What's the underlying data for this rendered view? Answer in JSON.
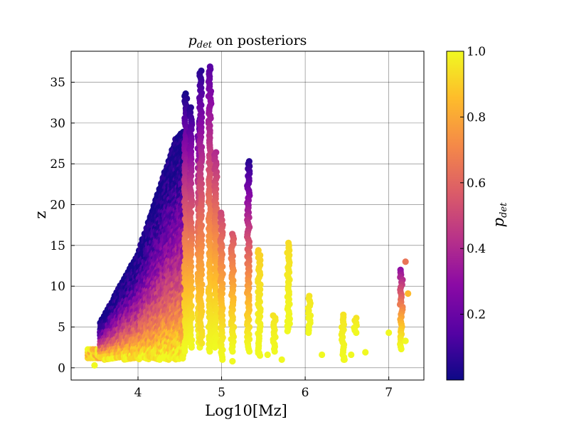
{
  "chart_data": {
    "type": "scatter",
    "title": "p_det on posteriors",
    "title_symbol": "p",
    "title_subscript": "det",
    "title_rest": " on posteriors",
    "xlabel": "Log10[Mz]",
    "ylabel": "z",
    "xlim": [
      3.2,
      7.42
    ],
    "ylim": [
      -1.5,
      38.8
    ],
    "xticks": [
      4,
      5,
      6,
      7
    ],
    "yticks": [
      0,
      5,
      10,
      15,
      20,
      25,
      30,
      35
    ],
    "grid": true,
    "colormap": "plasma",
    "colors": {
      "cmap_stops": [
        "#0d0887",
        "#5302a3",
        "#8b0aa5",
        "#b83289",
        "#db5c68",
        "#f48849",
        "#febd2a",
        "#f0f921"
      ],
      "grid": "#000000"
    },
    "colorbar": {
      "label_symbol": "p",
      "label_subscript": "det",
      "range": [
        0.0,
        1.0
      ],
      "ticks": [
        0.2,
        0.4,
        0.6,
        0.8,
        1.0
      ],
      "tick_labels": [
        "0.2",
        "0.4",
        "0.6",
        "0.8",
        "1.0"
      ]
    },
    "groups": [
      {
        "type": "band",
        "x_min": 3.4,
        "x_max": 3.55,
        "z_min": 1.2,
        "z_max": 2.5,
        "p_low": 0.75,
        "p_high": 1.0
      },
      {
        "type": "edge_band",
        "x_min": 3.55,
        "x_max": 4.55,
        "z_min": 1.0,
        "z_top_at": [
          [
            3.55,
            5.5
          ],
          [
            4.0,
            14.0
          ],
          [
            4.45,
            28.0
          ],
          [
            4.55,
            29.0
          ]
        ],
        "p_low": 0.02,
        "p_high": 1.0
      },
      {
        "type": "column",
        "x": 4.57,
        "z_min": 2.0,
        "z_max": 33.6,
        "p_low": 0.02,
        "p_high": 1.0
      },
      {
        "type": "column",
        "x": 4.63,
        "z_min": 2.5,
        "z_max": 31.9,
        "p_low": 0.05,
        "p_high": 1.0
      },
      {
        "type": "column",
        "x": 4.73,
        "z_min": 2.5,
        "z_max": 30.5,
        "p_low": 0.12,
        "p_high": 1.0
      },
      {
        "type": "column",
        "x": 4.75,
        "z_min": 3.0,
        "z_max": 36.4,
        "p_low": 0.05,
        "p_high": 0.95
      },
      {
        "type": "column",
        "x": 4.86,
        "z_min": 2.0,
        "z_max": 36.9,
        "p_low": 0.15,
        "p_high": 1.0
      },
      {
        "type": "column",
        "x": 4.93,
        "z_min": 2.5,
        "z_max": 26.4,
        "p_low": 0.4,
        "p_high": 1.0
      },
      {
        "type": "column",
        "x": 5.0,
        "z_min": 1.0,
        "z_max": 19.0,
        "p_low": 0.5,
        "p_high": 1.0
      },
      {
        "type": "column",
        "x": 5.13,
        "z_min": 2.0,
        "z_max": 16.4,
        "p_low": 0.55,
        "p_high": 1.0
      },
      {
        "type": "column",
        "x": 5.32,
        "z_min": 2.0,
        "z_max": 25.3,
        "p_low": 0.05,
        "p_high": 1.0
      },
      {
        "type": "column",
        "x": 5.45,
        "z_min": 1.5,
        "z_max": 14.4,
        "p_low": 0.9,
        "p_high": 1.0
      },
      {
        "type": "column",
        "x": 5.63,
        "z_min": 2.0,
        "z_max": 6.4,
        "p_low": 0.95,
        "p_high": 1.0
      },
      {
        "type": "column",
        "x": 5.8,
        "z_min": 4.5,
        "z_max": 15.3,
        "p_low": 0.93,
        "p_high": 1.0
      },
      {
        "type": "column",
        "x": 6.05,
        "z_min": 4.3,
        "z_max": 8.8,
        "p_low": 0.95,
        "p_high": 1.0
      },
      {
        "type": "column",
        "x": 6.45,
        "z_min": 1.0,
        "z_max": 6.5,
        "p_low": 0.95,
        "p_high": 1.0
      },
      {
        "type": "column",
        "x": 6.6,
        "z_min": 4.3,
        "z_max": 6.1,
        "p_low": 0.95,
        "p_high": 1.0
      },
      {
        "type": "column",
        "x": 7.15,
        "z_min": 2.3,
        "z_max": 12.0,
        "p_low": 0.3,
        "p_high": 1.0
      },
      {
        "type": "points",
        "x": [
          3.48,
          5.13,
          6.2,
          6.47,
          6.55,
          6.72,
          7.0,
          7.2,
          7.2,
          7.23,
          5.72,
          5.55,
          5.45
        ],
        "z": [
          0.3,
          0.8,
          1.6,
          1.0,
          1.6,
          1.9,
          4.3,
          13.0,
          3.3,
          9.1,
          1.0,
          1.6,
          1.8
        ],
        "p": [
          1.0,
          1.0,
          1.0,
          1.0,
          1.0,
          1.0,
          1.0,
          0.65,
          1.0,
          0.85,
          1.0,
          1.0,
          1.0
        ]
      }
    ]
  }
}
